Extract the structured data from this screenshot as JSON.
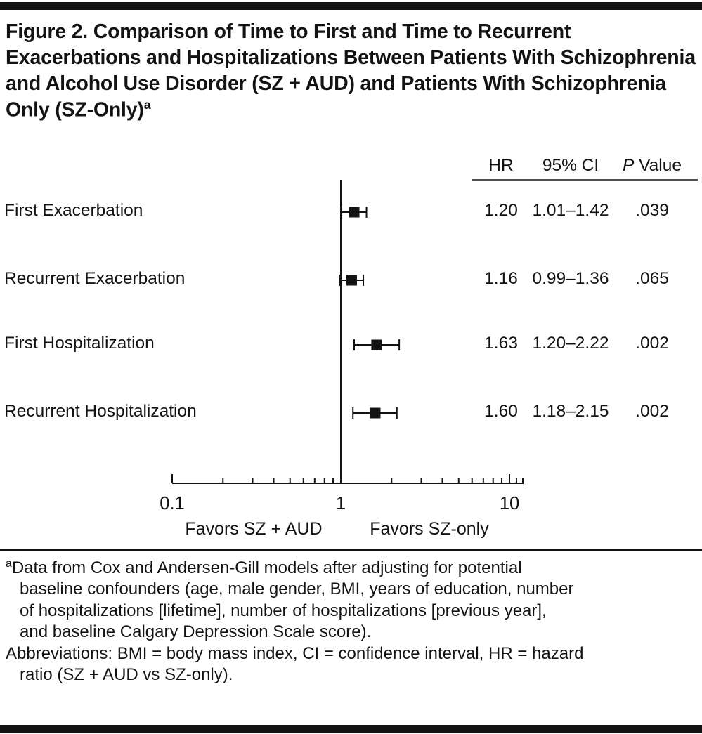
{
  "figure": {
    "title": "Figure 2. Comparison of Time to First and Time to Recurrent Exacerbations and Hospitalizations Between Patients With Schizophrenia and Alcohol Use Disorder (SZ + AUD) and Patients With Schizophrenia Only (SZ-Only)",
    "title_footnote_marker": "a"
  },
  "chart_data": {
    "type": "forest",
    "x_axis": {
      "scale": "log10",
      "labeled_ticks": [
        0.1,
        1,
        10
      ],
      "tick_labels": [
        "0.1",
        "1",
        "10"
      ],
      "minor_ticks": [
        0.2,
        0.3,
        0.4,
        0.5,
        0.6,
        0.7,
        0.8,
        0.9,
        2,
        3,
        4,
        5,
        6,
        7,
        8,
        9,
        11,
        12
      ],
      "range_shown": [
        0.1,
        12
      ]
    },
    "reference_line": 1,
    "favors_labels": {
      "left": "Favors SZ + AUD",
      "right": "Favors SZ-only"
    },
    "columns": {
      "hr": "HR",
      "ci": "95% CI",
      "p_italic": "P",
      "p_rest": " Value"
    },
    "rows": [
      {
        "label": "First Exacerbation",
        "hr": 1.2,
        "ci_low": 1.01,
        "ci_high": 1.42,
        "hr_text": "1.20",
        "ci_text": "1.01–1.42",
        "p_text": ".039"
      },
      {
        "label": "Recurrent Exacerbation",
        "hr": 1.16,
        "ci_low": 0.99,
        "ci_high": 1.36,
        "hr_text": "1.16",
        "ci_text": "0.99–1.36",
        "p_text": ".065"
      },
      {
        "label": "First Hospitalization",
        "hr": 1.63,
        "ci_low": 1.2,
        "ci_high": 2.22,
        "hr_text": "1.63",
        "ci_text": "1.20–2.22",
        "p_text": ".002"
      },
      {
        "label": "Recurrent Hospitalization",
        "hr": 1.6,
        "ci_low": 1.18,
        "ci_high": 2.15,
        "hr_text": "1.60",
        "ci_text": "1.18–2.15",
        "p_text": ".002"
      }
    ]
  },
  "footnotes": {
    "a_marker": "a",
    "a_text": "Data from Cox and Andersen-Gill models after adjusting for potential\n   baseline confounders (age, male gender, BMI, years of education, number\n   of hospitalizations [lifetime], number of hospitalizations [previous year],\n   and baseline Calgary Depression Scale score).",
    "abbreviations": "Abbreviations: BMI = body mass index, CI = confidence interval, HR = hazard\n   ratio (SZ + AUD vs SZ-only)."
  },
  "colors": {
    "ink": "#131313",
    "background": "#ffffff"
  }
}
